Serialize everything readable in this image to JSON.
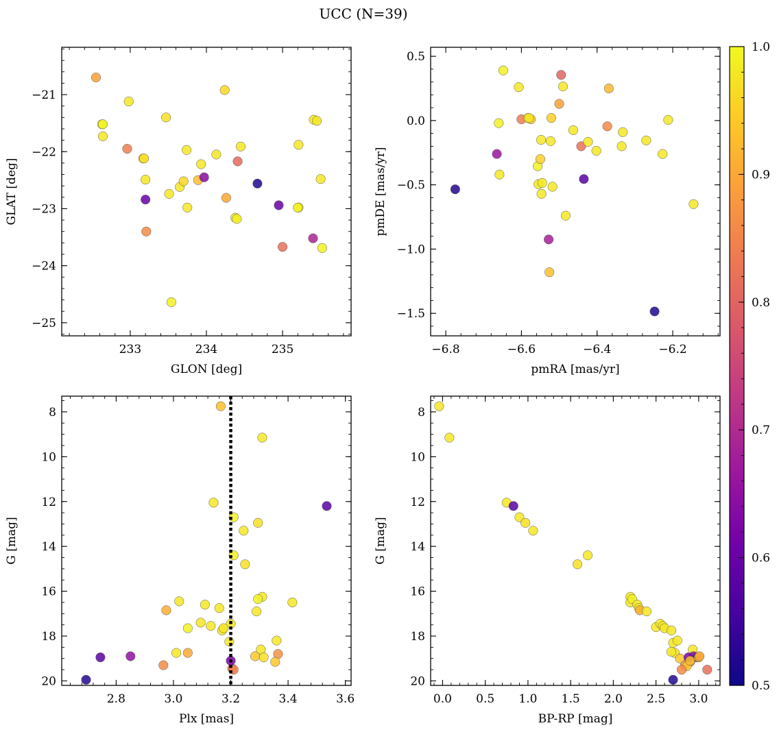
{
  "figure_title": "UCC (N=39)",
  "colorbar": {
    "min": 0.5,
    "max": 1.0,
    "ticks": [
      "0.5",
      "0.6",
      "0.7",
      "0.8",
      "0.9",
      "1.0"
    ],
    "tick_values": [
      0.5,
      0.6,
      0.7,
      0.8,
      0.9,
      1.0
    ],
    "colormap": "plasma",
    "colormap_stops": [
      "#0d0887",
      "#46039f",
      "#7201a8",
      "#9c179e",
      "#bd3786",
      "#d8576b",
      "#ed7953",
      "#fb9f3a",
      "#fdca26",
      "#f0f921"
    ]
  },
  "chart_data": [
    {
      "type": "scatter",
      "name": "glon-glat",
      "xlabel": "GLON [deg]",
      "ylabel": "GLAT [deg]",
      "xlim": [
        232.1,
        235.9
      ],
      "ylim": [
        -25.23,
        -20.17
      ],
      "x_ticks": [
        233,
        234,
        235
      ],
      "x_tick_labels": [
        "233",
        "234",
        "235"
      ],
      "x_minor": 0.2,
      "y_ticks": [
        -25,
        -24,
        -23,
        -22,
        -21
      ],
      "y_tick_labels": [
        "−25",
        "−24",
        "−23",
        "−22",
        "−21"
      ],
      "y_minor": 0.2,
      "x": [
        232.55,
        232.63,
        232.64,
        232.96,
        232.98,
        233.17,
        233.2,
        233.2,
        233.21,
        233.47,
        233.51,
        233.54,
        233.65,
        233.7,
        233.74,
        233.75,
        233.89,
        233.93,
        233.97,
        234.13,
        234.24,
        234.26,
        234.38,
        234.4,
        234.41,
        234.45,
        234.67,
        234.95,
        235.0,
        235.21,
        235.21,
        235.4,
        235.41,
        235.45,
        235.5,
        235.52,
        232.64,
        233.18,
        235.2
      ],
      "y": [
        -20.7,
        -21.52,
        -21.73,
        -21.95,
        -21.12,
        -22.12,
        -22.84,
        -22.49,
        -23.4,
        -21.4,
        -22.74,
        -24.64,
        -22.62,
        -22.52,
        -21.97,
        -22.98,
        -22.5,
        -22.22,
        -22.45,
        -22.05,
        -20.92,
        -22.81,
        -23.16,
        -23.18,
        -22.17,
        -21.91,
        -22.56,
        -22.94,
        -23.67,
        -21.88,
        -22.98,
        -23.52,
        -21.44,
        -21.46,
        -22.48,
        -23.69,
        -21.52,
        -22.12,
        -22.98
      ],
      "c": [
        0.89,
        0.99,
        0.98,
        0.84,
        0.98,
        0.95,
        0.6,
        0.98,
        0.86,
        0.97,
        0.98,
        0.99,
        0.98,
        0.96,
        0.98,
        0.98,
        0.93,
        0.98,
        0.64,
        0.98,
        0.96,
        0.9,
        0.97,
        0.99,
        0.81,
        0.98,
        0.52,
        0.6,
        0.82,
        0.98,
        0.98,
        0.69,
        0.98,
        0.98,
        0.98,
        0.99,
        0.99,
        0.97,
        0.99
      ]
    },
    {
      "type": "scatter",
      "name": "pmra-pmde",
      "xlabel": "pmRA [mas/yr]",
      "ylabel": "pmDE [mas/yr]",
      "xlim": [
        -6.84,
        -6.075
      ],
      "ylim": [
        -1.675,
        0.57
      ],
      "x_ticks": [
        -6.8,
        -6.6,
        -6.4,
        -6.2
      ],
      "x_tick_labels": [
        "−6.8",
        "−6.6",
        "−6.4",
        "−6.2"
      ],
      "x_minor": 0.04,
      "y_ticks": [
        -1.5,
        -1.0,
        -0.5,
        0.0,
        0.5
      ],
      "y_tick_labels": [
        "−1.5",
        "−1.0",
        "−0.5",
        "0.0",
        "0.5"
      ],
      "y_minor": 0.1,
      "x": [
        -6.775,
        -6.665,
        -6.66,
        -6.658,
        -6.648,
        -6.607,
        -6.6,
        -6.583,
        -6.575,
        -6.557,
        -6.555,
        -6.55,
        -6.548,
        -6.547,
        -6.545,
        -6.528,
        -6.526,
        -6.523,
        -6.521,
        -6.518,
        -6.5,
        -6.495,
        -6.49,
        -6.483,
        -6.463,
        -6.442,
        -6.435,
        -6.424,
        -6.402,
        -6.373,
        -6.369,
        -6.335,
        -6.332,
        -6.27,
        -6.248,
        -6.227,
        -6.212,
        -6.145,
        -6.58
      ],
      "y": [
        -0.535,
        -0.26,
        -0.02,
        -0.42,
        0.39,
        0.26,
        0.01,
        0.02,
        0.01,
        -0.355,
        -0.495,
        -0.3,
        -0.15,
        -0.57,
        -0.485,
        -0.925,
        -1.18,
        -0.16,
        0.02,
        -0.515,
        0.13,
        0.355,
        0.265,
        -0.74,
        -0.075,
        -0.2,
        -0.455,
        -0.165,
        -0.235,
        -0.045,
        0.25,
        -0.2,
        -0.09,
        -0.155,
        -1.485,
        -0.26,
        0.005,
        -0.65,
        0.02
      ],
      "c": [
        0.52,
        0.66,
        0.99,
        0.98,
        0.99,
        0.98,
        0.84,
        0.98,
        0.94,
        0.99,
        0.98,
        0.95,
        0.98,
        0.98,
        0.98,
        0.68,
        0.93,
        0.98,
        0.95,
        0.98,
        0.89,
        0.8,
        0.98,
        0.98,
        0.98,
        0.82,
        0.58,
        0.98,
        0.98,
        0.86,
        0.92,
        0.98,
        0.98,
        0.98,
        0.52,
        0.98,
        0.98,
        0.98,
        0.98
      ]
    },
    {
      "type": "scatter",
      "name": "plx-g",
      "xlabel": "Plx [mas]",
      "ylabel": "G [mag]",
      "xlim": [
        2.61,
        3.62
      ],
      "ylim": [
        20.2,
        7.3
      ],
      "y_inverted": true,
      "x_ticks": [
        2.8,
        3.0,
        3.2,
        3.4,
        3.6
      ],
      "x_tick_labels": [
        "2.8",
        "3.0",
        "3.2",
        "3.4",
        "3.6"
      ],
      "x_minor": 0.04,
      "y_ticks": [
        8,
        10,
        12,
        14,
        16,
        18,
        20
      ],
      "y_tick_labels": [
        "8",
        "10",
        "12",
        "14",
        "16",
        "18",
        "20"
      ],
      "y_minor": 0.5,
      "vline": 3.2,
      "x": [
        3.165,
        3.31,
        3.14,
        3.21,
        3.245,
        3.295,
        3.535,
        3.21,
        3.25,
        3.31,
        3.295,
        3.415,
        3.02,
        3.11,
        3.16,
        2.975,
        3.29,
        3.095,
        3.05,
        3.13,
        3.2,
        3.17,
        3.175,
        3.36,
        3.195,
        3.305,
        3.01,
        3.05,
        3.315,
        3.365,
        3.285,
        3.355,
        2.85,
        2.745,
        3.205,
        2.965,
        3.2,
        3.21,
        2.695
      ],
      "y": [
        7.75,
        9.15,
        12.05,
        12.7,
        13.3,
        12.95,
        12.2,
        14.4,
        14.8,
        16.25,
        16.35,
        16.5,
        16.45,
        16.6,
        16.75,
        16.85,
        16.9,
        17.4,
        17.65,
        17.55,
        17.45,
        17.75,
        17.65,
        18.2,
        18.25,
        18.6,
        18.75,
        18.75,
        18.95,
        18.8,
        18.9,
        19.15,
        18.9,
        18.95,
        19.45,
        19.3,
        19.1,
        19.5,
        19.95
      ],
      "c": [
        0.93,
        0.98,
        0.98,
        0.99,
        0.98,
        0.97,
        0.58,
        0.99,
        0.97,
        0.98,
        0.99,
        0.98,
        0.98,
        0.98,
        0.98,
        0.91,
        0.98,
        0.98,
        0.99,
        0.98,
        0.98,
        0.98,
        0.98,
        0.98,
        0.98,
        0.98,
        0.98,
        0.9,
        0.97,
        0.87,
        0.94,
        0.94,
        0.65,
        0.58,
        0.82,
        0.86,
        0.62,
        0.85,
        0.52
      ]
    },
    {
      "type": "scatter",
      "name": "bprp-g",
      "xlabel": "BP-RP [mag]",
      "ylabel": "G [mag]",
      "xlim": [
        -0.14,
        3.25
      ],
      "ylim": [
        20.2,
        7.3
      ],
      "y_inverted": true,
      "x_ticks": [
        0.0,
        0.5,
        1.0,
        1.5,
        2.0,
        2.5,
        3.0
      ],
      "x_tick_labels": [
        "0.0",
        "0.5",
        "1.0",
        "1.5",
        "2.0",
        "2.5",
        "3.0"
      ],
      "x_minor": 0.1,
      "y_ticks": [
        8,
        10,
        12,
        14,
        16,
        18,
        20
      ],
      "y_tick_labels": [
        "8",
        "10",
        "12",
        "14",
        "16",
        "18",
        "20"
      ],
      "y_minor": 0.5,
      "x": [
        -0.04,
        0.08,
        0.75,
        0.83,
        0.9,
        0.97,
        1.06,
        1.58,
        1.7,
        2.2,
        2.2,
        2.22,
        2.28,
        2.3,
        2.31,
        2.39,
        2.5,
        2.55,
        2.58,
        2.6,
        2.68,
        2.7,
        2.72,
        2.75,
        2.68,
        2.78,
        2.84,
        2.9,
        2.93,
        2.94,
        2.98,
        3.0,
        3.1,
        2.86,
        2.8,
        2.88,
        2.9,
        3.01,
        2.7
      ],
      "y": [
        7.75,
        9.15,
        12.05,
        12.2,
        12.7,
        12.95,
        13.3,
        14.8,
        14.4,
        16.25,
        16.5,
        16.35,
        16.6,
        16.75,
        16.85,
        16.9,
        17.6,
        17.45,
        17.55,
        17.65,
        17.75,
        18.3,
        18.75,
        18.2,
        18.7,
        19.0,
        19.3,
        19.15,
        18.6,
        18.9,
        18.95,
        18.95,
        19.5,
        19.35,
        19.5,
        18.95,
        19.1,
        18.9,
        19.95
      ],
      "c": [
        0.98,
        0.98,
        0.98,
        0.58,
        0.98,
        0.97,
        0.98,
        0.97,
        0.98,
        0.98,
        0.98,
        0.99,
        0.98,
        0.98,
        0.91,
        0.98,
        0.98,
        0.98,
        0.98,
        0.98,
        0.98,
        0.98,
        0.98,
        0.98,
        0.98,
        0.94,
        0.87,
        0.82,
        0.98,
        0.65,
        0.58,
        0.94,
        0.82,
        0.94,
        0.86,
        0.62,
        0.93,
        0.9,
        0.52
      ]
    }
  ]
}
